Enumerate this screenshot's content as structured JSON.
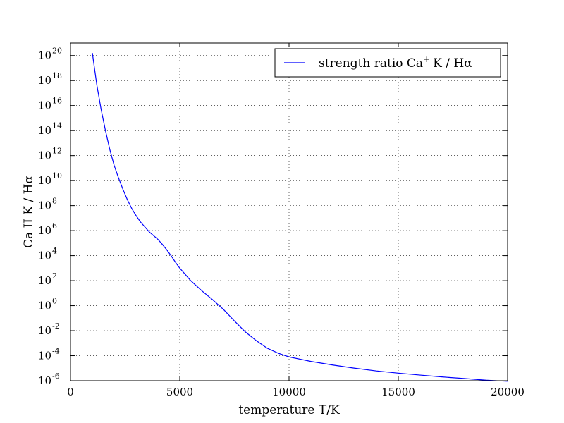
{
  "chart_data": {
    "type": "line",
    "title": "",
    "xlabel": "temperature T/K",
    "ylabel": "Ca II K / Hα",
    "xlim": [
      0,
      20000
    ],
    "ylim_log10": [
      -6,
      21
    ],
    "yscale": "log",
    "grid": true,
    "grid_style": "dotted",
    "legend_placement": "top-right",
    "x_ticks": [
      0,
      5000,
      10000,
      15000,
      20000
    ],
    "x_tick_labels": [
      "0",
      "5000",
      "10000",
      "15000",
      "20000"
    ],
    "y_ticks_log10": [
      -6,
      -4,
      -2,
      0,
      2,
      4,
      6,
      8,
      10,
      12,
      14,
      16,
      18,
      20
    ],
    "y_tick_labels": [
      {
        "base": "10",
        "exp": "-6"
      },
      {
        "base": "10",
        "exp": "-4"
      },
      {
        "base": "10",
        "exp": "-2"
      },
      {
        "base": "10",
        "exp": "0"
      },
      {
        "base": "10",
        "exp": "2"
      },
      {
        "base": "10",
        "exp": "4"
      },
      {
        "base": "10",
        "exp": "6"
      },
      {
        "base": "10",
        "exp": "8"
      },
      {
        "base": "10",
        "exp": "10"
      },
      {
        "base": "10",
        "exp": "12"
      },
      {
        "base": "10",
        "exp": "14"
      },
      {
        "base": "10",
        "exp": "16"
      },
      {
        "base": "10",
        "exp": "18"
      },
      {
        "base": "10",
        "exp": "20"
      }
    ],
    "series": [
      {
        "name": "strength ratio Ca⁺K / Hα",
        "legend_parts": {
          "pre": "strength ratio Ca",
          "sup": "+",
          "post": "K / Hα"
        },
        "color": "#0000ff",
        "x": [
          1000,
          1200,
          1400,
          1600,
          1800,
          2000,
          2200,
          2400,
          2600,
          2800,
          3000,
          3200,
          3400,
          3600,
          3800,
          4000,
          4200,
          4400,
          4600,
          4800,
          5000,
          5500,
          6000,
          6500,
          7000,
          7500,
          8000,
          8500,
          9000,
          9500,
          10000,
          11000,
          12000,
          13000,
          14000,
          15000,
          16000,
          17000,
          18000,
          19000,
          20000
        ],
        "y": [
          1.6e+20,
          5e+17,
          5000000000000000.0,
          100000000000000.0,
          3000000000000.0,
          160000000000.0,
          16000000000.0,
          2000000000.0,
          300000000.0,
          60000000.0,
          16000000.0,
          5000000.0,
          2000000.0,
          800000.0,
          400000.0,
          200000.0,
          80000.0,
          30000.0,
          10000.0,
          3000.0,
          1000.0,
          100.0,
          16.0,
          3,
          0.5,
          0.06,
          0.008,
          0.0016,
          0.0004,
          0.00016,
          8e-05,
          3.5e-05,
          1.8e-05,
          1e-05,
          6e-06,
          4e-06,
          2.8e-06,
          2e-06,
          1.5e-06,
          1.1e-06,
          9e-07
        ]
      }
    ]
  }
}
